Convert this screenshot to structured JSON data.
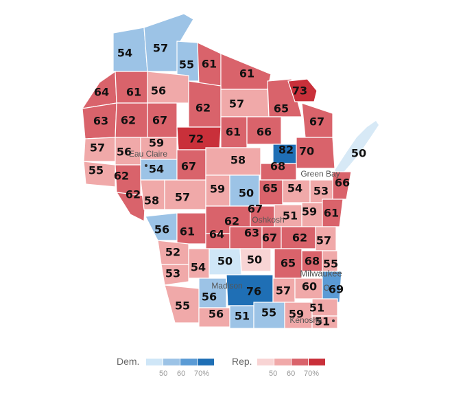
{
  "colors": {
    "dem_light": "#cfe6f7",
    "dem_mid": "#9cc3e6",
    "dem_mid2": "#5b9bd5",
    "dem_dark": "#1f6fb5",
    "rep_light": "#f8d4d4",
    "rep_mid": "#f0a9a9",
    "rep_mid2": "#d9636b",
    "rep_dark": "#c9303a",
    "lake": "#d7e9f6"
  },
  "cities": {
    "eau_claire": "Eau Claire",
    "green_bay": "Green Bay",
    "oshkosh": "Oshkosh",
    "madison": "Madison",
    "milwaukee": "Milwaukee",
    "kenosha": "Kenosha",
    "o": "O"
  },
  "county_values": [
    "54",
    "57",
    "55",
    "61",
    "61",
    "64",
    "61",
    "56",
    "62",
    "57",
    "65",
    "73",
    "63",
    "62",
    "67",
    "61",
    "66",
    "67",
    "57",
    "56",
    "59",
    "72",
    "82",
    "70",
    "50",
    "55",
    "62",
    "54",
    "67",
    "58",
    "68",
    "62",
    "58",
    "57",
    "59",
    "50",
    "65",
    "54",
    "53",
    "66",
    "56",
    "61",
    "62",
    "67",
    "51",
    "59",
    "61",
    "64",
    "63",
    "67",
    "62",
    "57",
    "52",
    "54",
    "50",
    "50",
    "65",
    "68",
    "55",
    "53",
    "56",
    "76",
    "57",
    "60",
    "69",
    "55",
    "56",
    "51",
    "55",
    "59",
    "51",
    "51"
  ],
  "legend": {
    "dem_label": "Dem.",
    "rep_label": "Rep.",
    "ticks": [
      "50",
      "60",
      "70%"
    ]
  }
}
